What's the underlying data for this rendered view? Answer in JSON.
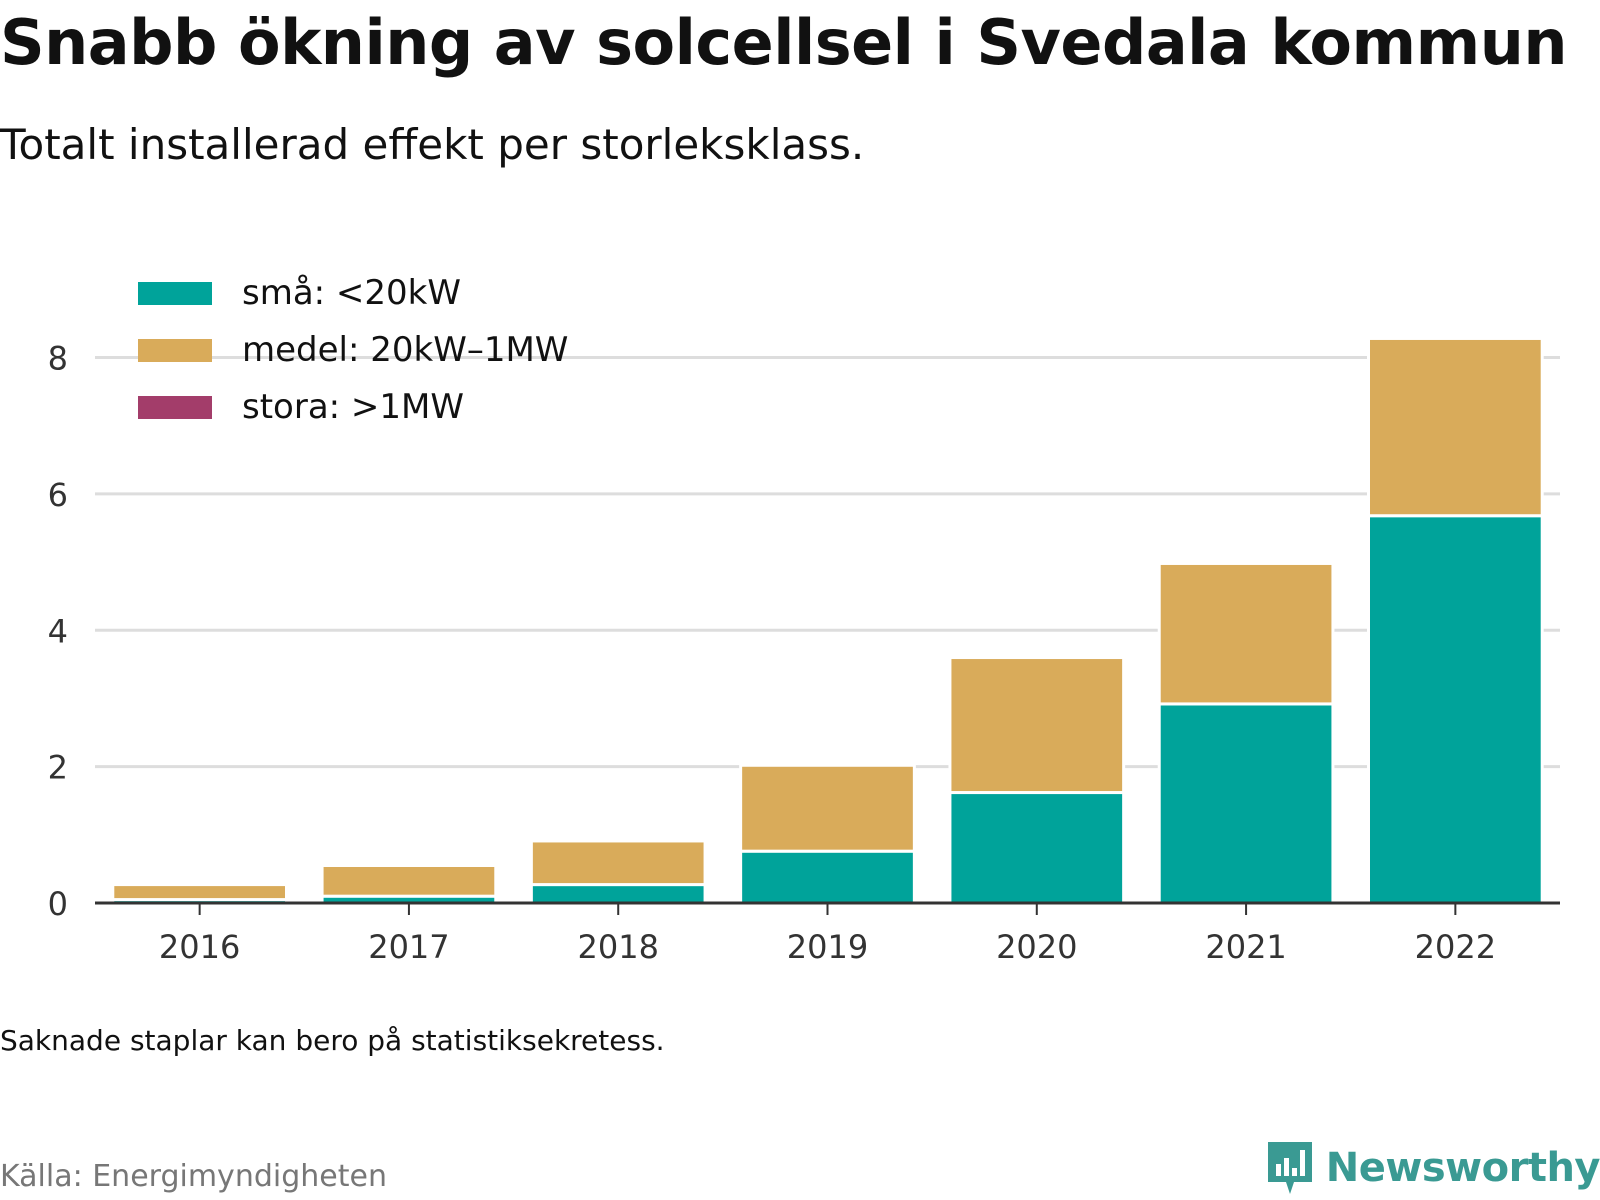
{
  "header": {
    "title": "Snabb ökning av solcellsel i Svedala kommun",
    "subtitle": "Totalt installerad effekt per storleksklass."
  },
  "footer": {
    "note": "Saknade staplar kan bero på statistiksekretess.",
    "source": "Källa: Energimyndigheten",
    "brand": "Newsworthy"
  },
  "colors": {
    "small": "#00a39a",
    "medium": "#d9ab5a",
    "large": "#a33d6a",
    "grid": "#dddddd",
    "axis": "#333333",
    "brand": "#3a9a93"
  },
  "icons": {
    "brand_logo": "newsworthy-chart-icon"
  },
  "chart_data": {
    "type": "bar",
    "stacked": true,
    "title": "Snabb ökning av solcellsel i Svedala kommun",
    "subtitle": "Totalt installerad effekt per storleksklass.",
    "xlabel": "",
    "ylabel": "",
    "categories": [
      "2016",
      "2017",
      "2018",
      "2019",
      "2020",
      "2021",
      "2022"
    ],
    "ylim": [
      0,
      8.8
    ],
    "yticks": [
      0,
      2,
      4,
      6,
      8
    ],
    "grid": true,
    "legend_position": "top-left",
    "series": [
      {
        "name": "små: <20kW",
        "color": "#00a39a",
        "values": [
          0.05,
          0.1,
          0.27,
          0.76,
          1.62,
          2.92,
          5.68
        ]
      },
      {
        "name": "medel: 20kW–1MW",
        "color": "#d9ab5a",
        "values": [
          0.22,
          0.45,
          0.64,
          1.26,
          1.98,
          2.06,
          2.6
        ]
      },
      {
        "name": "stora: >1MW",
        "color": "#a33d6a",
        "values": [
          0,
          0,
          0,
          0,
          0,
          0,
          0
        ]
      }
    ]
  }
}
